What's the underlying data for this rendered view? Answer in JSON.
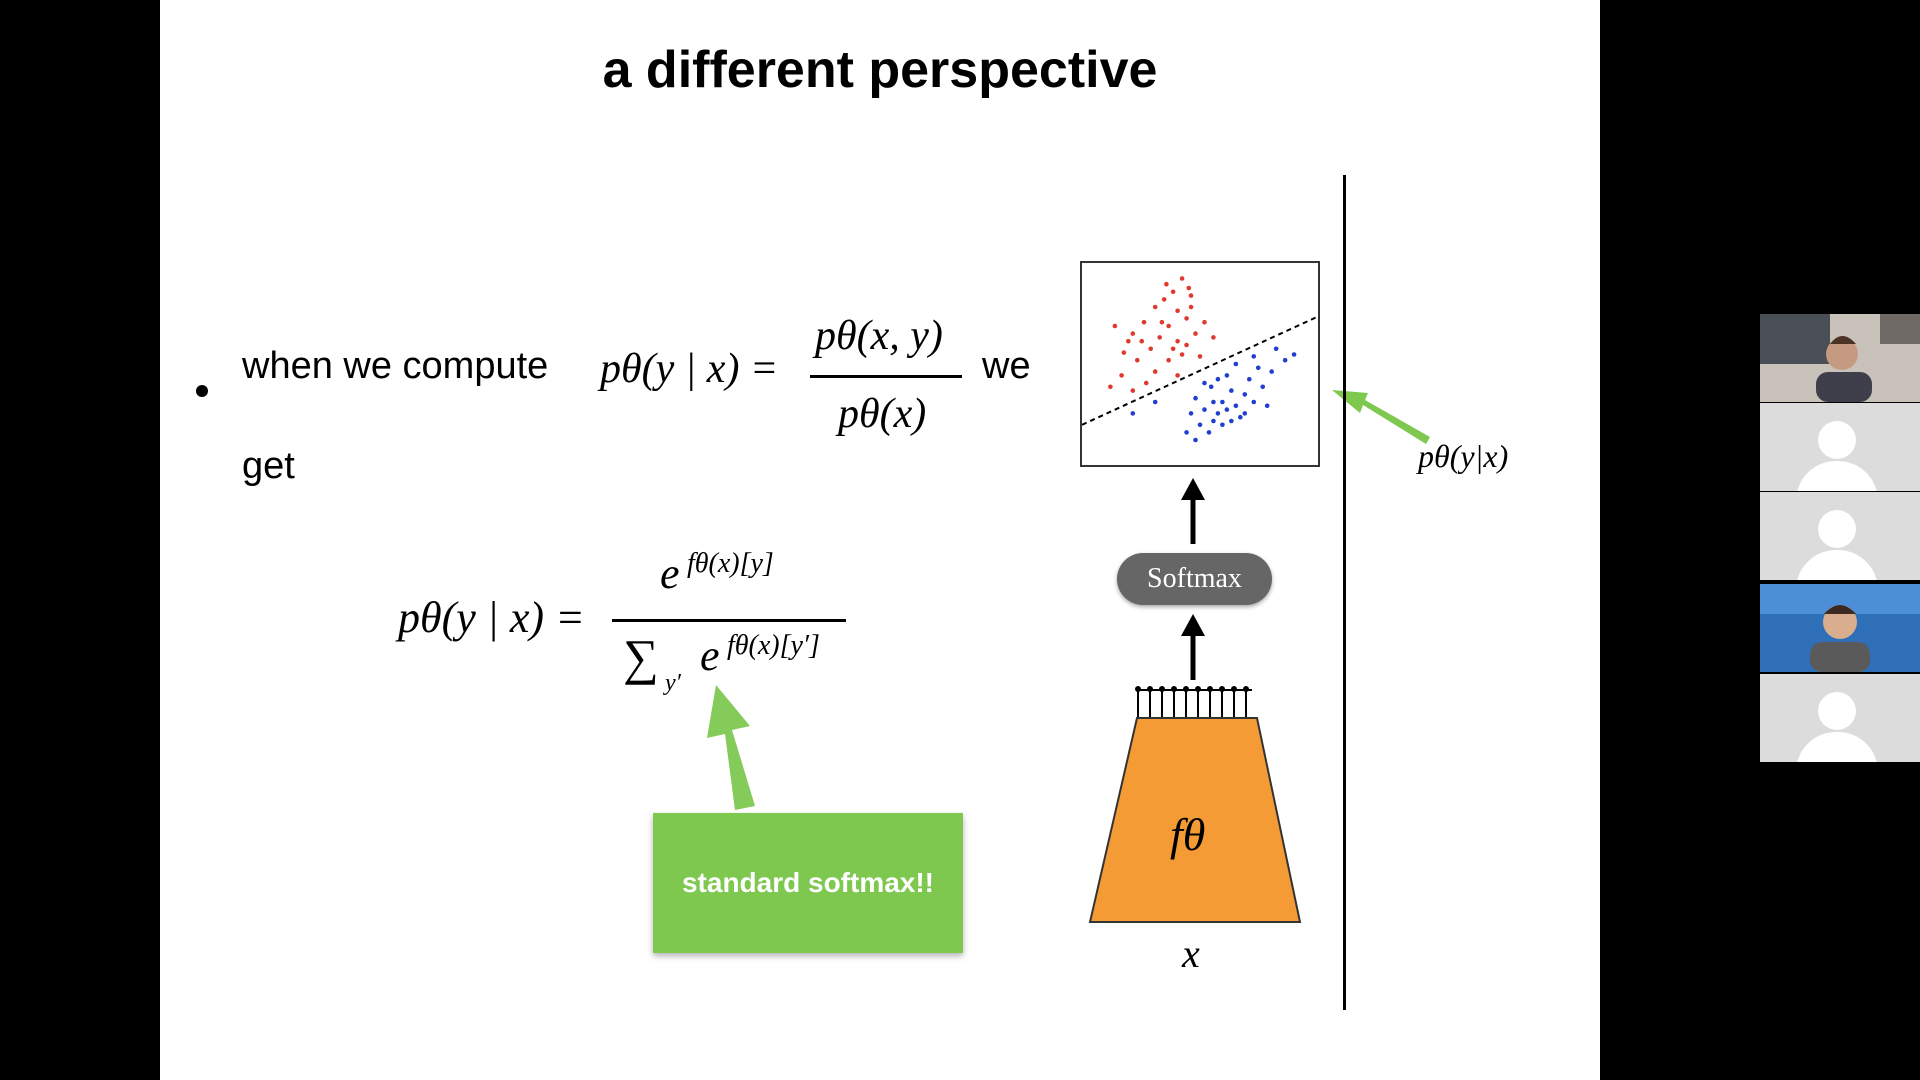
{
  "slide": {
    "title": "a different perspective",
    "bullet_prefix": "when we compute",
    "bullet_suffix": "we",
    "bullet_line2": "get",
    "eq1": {
      "lhs": "pθ(y | x) =",
      "numerator": "pθ(x, y)",
      "denominator": "pθ(x)"
    },
    "eq2": {
      "lhs": "pθ(y | x) =",
      "numerator_base": "e",
      "numerator_exp": "fθ(x)[y]",
      "denominator_sum": "∑",
      "denominator_sub": "y′",
      "denominator_base": "e",
      "denominator_exp": "fθ(x)[y′]"
    },
    "callout": "standard softmax!!",
    "diagram": {
      "softmax_label": "Softmax",
      "network_label": "fθ",
      "input_label": "x",
      "output_label": "pθ(y|x)"
    }
  },
  "chart_data": {
    "type": "scatter",
    "title": "",
    "xlabel": "",
    "ylabel": "",
    "series": [
      {
        "color": "#e03a2f",
        "points": [
          [
            0.35,
            0.92
          ],
          [
            0.42,
            0.95
          ],
          [
            0.38,
            0.88
          ],
          [
            0.46,
            0.86
          ],
          [
            0.3,
            0.8
          ],
          [
            0.4,
            0.78
          ],
          [
            0.44,
            0.74
          ],
          [
            0.36,
            0.7
          ],
          [
            0.25,
            0.72
          ],
          [
            0.2,
            0.66
          ],
          [
            0.32,
            0.64
          ],
          [
            0.4,
            0.62
          ],
          [
            0.48,
            0.66
          ],
          [
            0.28,
            0.58
          ],
          [
            0.22,
            0.52
          ],
          [
            0.36,
            0.52
          ],
          [
            0.42,
            0.55
          ],
          [
            0.18,
            0.62
          ],
          [
            0.12,
            0.7
          ],
          [
            0.3,
            0.46
          ],
          [
            0.4,
            0.44
          ],
          [
            0.26,
            0.4
          ],
          [
            0.15,
            0.44
          ],
          [
            0.34,
            0.84
          ],
          [
            0.46,
            0.8
          ],
          [
            0.52,
            0.72
          ],
          [
            0.56,
            0.64
          ],
          [
            0.44,
            0.6
          ],
          [
            0.5,
            0.54
          ],
          [
            0.38,
            0.58
          ],
          [
            0.24,
            0.62
          ],
          [
            0.16,
            0.56
          ],
          [
            0.1,
            0.38
          ],
          [
            0.2,
            0.36
          ],
          [
            0.33,
            0.72
          ],
          [
            0.45,
            0.9
          ]
        ]
      },
      {
        "color": "#1f3fd1",
        "points": [
          [
            0.48,
            0.32
          ],
          [
            0.55,
            0.38
          ],
          [
            0.6,
            0.3
          ],
          [
            0.64,
            0.36
          ],
          [
            0.58,
            0.24
          ],
          [
            0.52,
            0.26
          ],
          [
            0.66,
            0.28
          ],
          [
            0.7,
            0.34
          ],
          [
            0.72,
            0.42
          ],
          [
            0.62,
            0.44
          ],
          [
            0.56,
            0.2
          ],
          [
            0.5,
            0.18
          ],
          [
            0.44,
            0.14
          ],
          [
            0.48,
            0.1
          ],
          [
            0.54,
            0.14
          ],
          [
            0.6,
            0.18
          ],
          [
            0.68,
            0.22
          ],
          [
            0.74,
            0.3
          ],
          [
            0.78,
            0.38
          ],
          [
            0.82,
            0.46
          ],
          [
            0.88,
            0.52
          ],
          [
            0.76,
            0.48
          ],
          [
            0.66,
            0.5
          ],
          [
            0.58,
            0.42
          ],
          [
            0.52,
            0.4
          ],
          [
            0.46,
            0.24
          ],
          [
            0.62,
            0.26
          ],
          [
            0.7,
            0.24
          ],
          [
            0.64,
            0.2
          ],
          [
            0.56,
            0.3
          ],
          [
            0.2,
            0.24
          ],
          [
            0.3,
            0.3
          ],
          [
            0.92,
            0.55
          ],
          [
            0.84,
            0.58
          ],
          [
            0.74,
            0.54
          ],
          [
            0.8,
            0.28
          ]
        ]
      }
    ],
    "decision_boundary": {
      "style": "dashed",
      "from": [
        0,
        0.18
      ],
      "to": [
        1,
        0.75
      ]
    }
  },
  "video": {
    "participants": [
      {
        "kind": "video",
        "label": ""
      },
      {
        "kind": "avatar",
        "label": ""
      },
      {
        "kind": "avatar",
        "label": ""
      },
      {
        "kind": "video",
        "label": ""
      },
      {
        "kind": "avatar",
        "label": ""
      }
    ]
  },
  "colors": {
    "accent_green": "#7ec850",
    "network_orange": "#f59b35",
    "softmax_gray": "#666666",
    "red_points": "#e03a2f",
    "blue_points": "#1f3fd1"
  }
}
